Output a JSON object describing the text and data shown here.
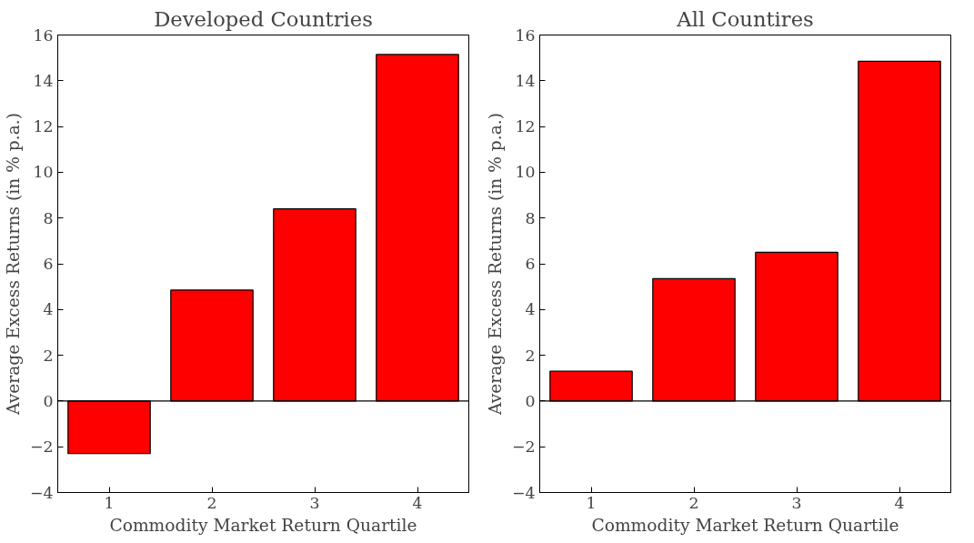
{
  "chart_data": [
    {
      "type": "bar",
      "title": "Developed Countries",
      "xlabel": "Commodity Market Return Quartile",
      "ylabel": "Average Excess Returns (in % p.a.)",
      "categories": [
        "1",
        "2",
        "3",
        "4"
      ],
      "values": [
        -2.3,
        4.85,
        8.4,
        15.15
      ],
      "color": "#ff0000",
      "ylim": [
        -4,
        16
      ],
      "yticks": [
        -4,
        -2,
        0,
        2,
        4,
        6,
        8,
        10,
        12,
        14,
        16
      ],
      "grid": false,
      "ref_lines": [
        {
          "axis": "y",
          "value": 0,
          "color": "#000000"
        }
      ]
    },
    {
      "type": "bar",
      "title": "All Countires",
      "xlabel": "Commodity Market Return Quartile",
      "ylabel": "Average Excess Returns (in % p.a.)",
      "categories": [
        "1",
        "2",
        "3",
        "4"
      ],
      "values": [
        1.3,
        5.35,
        6.5,
        14.85
      ],
      "color": "#ff0000",
      "ylim": [
        -4,
        16
      ],
      "yticks": [
        -4,
        -2,
        0,
        2,
        4,
        6,
        8,
        10,
        12,
        14,
        16
      ],
      "grid": false,
      "ref_lines": [
        {
          "axis": "y",
          "value": 0,
          "color": "#000000"
        }
      ]
    }
  ]
}
